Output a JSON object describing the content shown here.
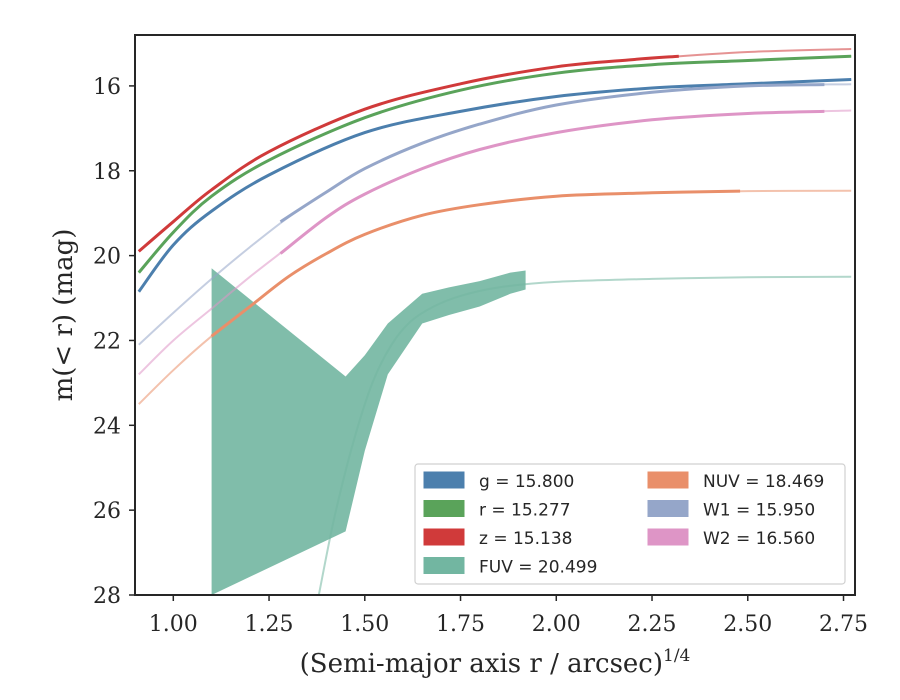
{
  "chart_data": {
    "type": "line",
    "xlabel": "(Semi-major axis r / arcsec)",
    "xlabel_sup": "1/4",
    "ylabel": "m(< r) (mag)",
    "xlim": [
      0.9,
      2.78
    ],
    "ylim": [
      28,
      14.8
    ],
    "y_inverted": true,
    "grid": false,
    "legend_placement": "bottom-right",
    "xticks": [
      1.0,
      1.25,
      1.5,
      1.75,
      2.0,
      2.25,
      2.5,
      2.75
    ],
    "xtick_labels": [
      "1.00",
      "1.25",
      "1.50",
      "1.75",
      "2.00",
      "2.25",
      "2.50",
      "2.75"
    ],
    "yticks": [
      16,
      18,
      20,
      22,
      24,
      26,
      28
    ],
    "ytick_labels": [
      "16",
      "18",
      "20",
      "22",
      "24",
      "26",
      "28"
    ],
    "series": [
      {
        "name": "g",
        "value": "15.800",
        "legend_label": "g = 15.800",
        "color": "#4c7fad",
        "model_x": [
          0.91,
          1.0,
          1.1,
          1.25,
          1.5,
          1.75,
          2.0,
          2.25,
          2.5,
          2.77
        ],
        "model_y": [
          20.85,
          19.75,
          18.95,
          18.1,
          17.1,
          16.6,
          16.25,
          16.05,
          15.95,
          15.85
        ],
        "x": [
          0.91,
          1.0,
          1.1,
          1.25,
          1.5,
          1.75,
          2.0,
          2.25,
          2.5,
          2.77
        ],
        "y": [
          20.85,
          19.75,
          18.95,
          18.1,
          17.1,
          16.6,
          16.25,
          16.05,
          15.95,
          15.85
        ]
      },
      {
        "name": "r",
        "value": "15.277",
        "legend_label": "r = 15.277",
        "color": "#5aa35a",
        "model_x": [
          0.91,
          1.0,
          1.1,
          1.25,
          1.5,
          1.75,
          2.0,
          2.25,
          2.5,
          2.77
        ],
        "model_y": [
          20.4,
          19.45,
          18.6,
          17.75,
          16.75,
          16.1,
          15.7,
          15.5,
          15.4,
          15.3
        ],
        "x": [
          0.91,
          1.0,
          1.1,
          1.25,
          1.5,
          1.75,
          2.0,
          2.25,
          2.5,
          2.77
        ],
        "y": [
          20.4,
          19.45,
          18.6,
          17.75,
          16.75,
          16.1,
          15.7,
          15.5,
          15.4,
          15.3
        ]
      },
      {
        "name": "z",
        "value": "15.138",
        "legend_label": "z = 15.138",
        "color": "#d03a3a",
        "model_x": [
          0.91,
          1.0,
          1.1,
          1.25,
          1.5,
          1.75,
          2.0,
          2.25,
          2.5,
          2.77
        ],
        "model_y": [
          19.9,
          19.2,
          18.45,
          17.55,
          16.55,
          15.95,
          15.55,
          15.35,
          15.2,
          15.13
        ],
        "x": [
          0.91,
          1.0,
          1.1,
          1.25,
          1.5,
          1.75,
          2.0,
          2.2,
          2.32
        ],
        "y": [
          19.9,
          19.2,
          18.45,
          17.55,
          16.55,
          15.95,
          15.55,
          15.38,
          15.3
        ]
      },
      {
        "name": "FUV",
        "value": "20.499",
        "legend_label": "FUV = 20.499",
        "color": "#72b6a1",
        "model_x": [
          1.38,
          1.42,
          1.47,
          1.52,
          1.57,
          1.62,
          1.68,
          1.75,
          1.85,
          2.0,
          2.25,
          2.5,
          2.77
        ],
        "model_y": [
          28.0,
          26.2,
          24.4,
          23.0,
          22.1,
          21.55,
          21.2,
          20.95,
          20.75,
          20.62,
          20.55,
          20.51,
          20.5
        ],
        "band_x": [
          1.1,
          1.45,
          1.5,
          1.56,
          1.65,
          1.72,
          1.8,
          1.88,
          1.92
        ],
        "band_upper": [
          20.3,
          22.85,
          22.35,
          21.6,
          20.9,
          20.75,
          20.6,
          20.4,
          20.35
        ],
        "band_lower": [
          28.0,
          26.5,
          24.6,
          22.8,
          21.6,
          21.4,
          21.2,
          20.9,
          20.8
        ]
      },
      {
        "name": "NUV",
        "value": "18.469",
        "legend_label": "NUV = 18.469",
        "color": "#e98f6a",
        "model_x": [
          0.91,
          1.0,
          1.1,
          1.2,
          1.3,
          1.4,
          1.5,
          1.65,
          1.8,
          2.0,
          2.25,
          2.5,
          2.77
        ],
        "model_y": [
          23.5,
          22.7,
          21.9,
          21.2,
          20.5,
          19.95,
          19.5,
          19.05,
          18.8,
          18.6,
          18.52,
          18.48,
          18.47
        ],
        "x": [
          1.1,
          1.2,
          1.3,
          1.4,
          1.5,
          1.65,
          1.8,
          2.0,
          2.25,
          2.48
        ],
        "y": [
          21.9,
          21.2,
          20.5,
          19.95,
          19.5,
          19.05,
          18.8,
          18.6,
          18.52,
          18.48
        ]
      },
      {
        "name": "W1",
        "value": "15.950",
        "legend_label": "W1 = 15.950",
        "color": "#95a6c9",
        "model_x": [
          0.91,
          1.0,
          1.1,
          1.2,
          1.3,
          1.4,
          1.5,
          1.65,
          1.8,
          2.0,
          2.25,
          2.5,
          2.77
        ],
        "model_y": [
          22.1,
          21.35,
          20.55,
          19.8,
          19.1,
          18.5,
          17.95,
          17.35,
          16.9,
          16.45,
          16.15,
          16.0,
          15.96
        ],
        "x": [
          1.28,
          1.4,
          1.5,
          1.65,
          1.8,
          2.0,
          2.25,
          2.5,
          2.7
        ],
        "y": [
          19.2,
          18.5,
          17.95,
          17.35,
          16.9,
          16.45,
          16.15,
          16.0,
          15.97
        ]
      },
      {
        "name": "W2",
        "value": "16.560",
        "legend_label": "W2 = 16.560",
        "color": "#de95c6",
        "model_x": [
          0.91,
          1.0,
          1.1,
          1.2,
          1.3,
          1.4,
          1.5,
          1.65,
          1.8,
          2.0,
          2.25,
          2.5,
          2.77
        ],
        "model_y": [
          22.8,
          22.0,
          21.25,
          20.5,
          19.8,
          19.1,
          18.55,
          17.95,
          17.5,
          17.1,
          16.8,
          16.65,
          16.58
        ],
        "x": [
          1.28,
          1.4,
          1.5,
          1.65,
          1.8,
          2.0,
          2.25,
          2.5,
          2.7
        ],
        "y": [
          19.95,
          19.1,
          18.55,
          17.95,
          17.5,
          17.1,
          16.8,
          16.65,
          16.6
        ]
      }
    ],
    "legend_columns": [
      [
        "g",
        "r",
        "z",
        "FUV"
      ],
      [
        "NUV",
        "W1",
        "W2"
      ]
    ]
  }
}
